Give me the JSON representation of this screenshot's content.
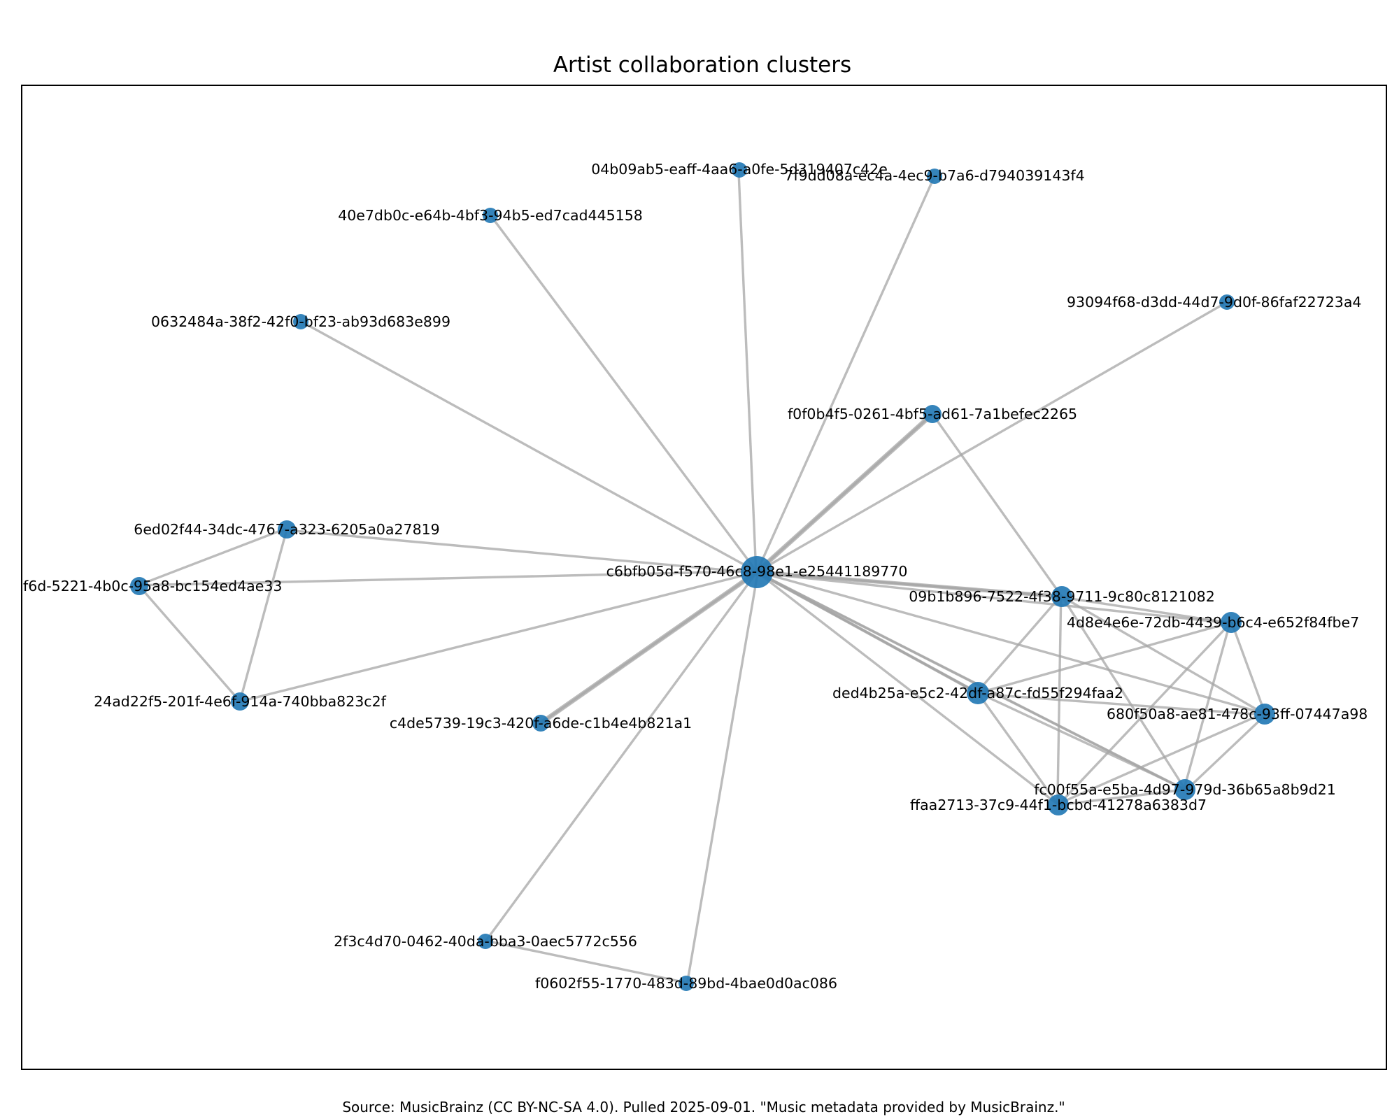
{
  "title": "Artist collaboration clusters",
  "caption": "Source: MusicBrainz (CC BY-NC-SA 4.0). Pulled 2025-09-01. \"Music metadata provided by MusicBrainz.\"",
  "colors": {
    "node": "#1f77b4",
    "edge": "#a6a6a6"
  },
  "nodes": [
    {
      "id": "c6bfb05d-f570-46c8-98e1-e25441189770",
      "label": "c6bfb05d-f570-46c8-98e1-e25441189770"
    },
    {
      "id": "04b09ab5-eaff-4aa6-a0fe-5d319407c42e",
      "label": "04b09ab5-eaff-4aa6-a0fe-5d319407c42e"
    },
    {
      "id": "7f9dd08a-ec4a-4ec9-b7a6-d794039143f4",
      "label": "7f9dd08a-ec4a-4ec9-b7a6-d794039143f4"
    },
    {
      "id": "40e7db0c-e64b-4bf3-94b5-ed7cad445158",
      "label": "40e7db0c-e64b-4bf3-94b5-ed7cad445158"
    },
    {
      "id": "0632484a-38f2-42f0-bf23-ab93d683e899",
      "label": "0632484a-38f2-42f0-bf23-ab93d683e899"
    },
    {
      "id": "93094f68-d3dd-44d7-9d0f-86faf22723a4",
      "label": "93094f68-d3dd-44d7-9d0f-86faf22723a4"
    },
    {
      "id": "f0f0b4f5-0261-4bf5-ad61-7a1befec2265",
      "label": "f0f0b4f5-0261-4bf5-ad61-7a1befec2265"
    },
    {
      "id": "6ed02f44-34dc-4767-a323-6205a0a27819",
      "label": "6ed02f44-34dc-4767-a323-6205a0a27819"
    },
    {
      "id": "f6d-5221-4b0c-95a8-bc154ed4ae33",
      "label": "f6d-5221-4b0c-95a8-bc154ed4ae33"
    },
    {
      "id": "24ad22f5-201f-4e6f-914a-740bba823c2f",
      "label": "24ad22f5-201f-4e6f-914a-740bba823c2f"
    },
    {
      "id": "c4de5739-19c3-420f-a6de-c1b4e4b821a1",
      "label": "c4de5739-19c3-420f-a6de-c1b4e4b821a1"
    },
    {
      "id": "09b1b896-7522-4f38-9711-9c80c8121082",
      "label": "09b1b896-7522-4f38-9711-9c80c8121082"
    },
    {
      "id": "4d8e4e6e-72db-4439-b6c4-e652f84fbe7",
      "label": "4d8e4e6e-72db-4439-b6c4-e652f84fbe7"
    },
    {
      "id": "ded4b25a-e5c2-42df-a87c-fd55f294faa2",
      "label": "ded4b25a-e5c2-42df-a87c-fd55f294faa2"
    },
    {
      "id": "680f50a8-ae81-478c-93ff-07447a98",
      "label": "680f50a8-ae81-478c-93ff-07447a98"
    },
    {
      "id": "fc00f55a-e5ba-4d97-979d-36b65a8b9d21",
      "label": "fc00f55a-e5ba-4d97-979d-36b65a8b9d21"
    },
    {
      "id": "ffaa2713-37c9-44f1-bcbd-41278a6383d7",
      "label": "ffaa2713-37c9-44f1-bcbd-41278a6383d7"
    },
    {
      "id": "2f3c4d70-0462-40da-bba3-0aec5772c556",
      "label": "2f3c4d70-0462-40da-bba3-0aec5772c556"
    },
    {
      "id": "f0602f55-1770-483d-89bd-4bae0d0ac086",
      "label": "f0602f55-1770-483d-89bd-4bae0d0ac086"
    }
  ]
}
